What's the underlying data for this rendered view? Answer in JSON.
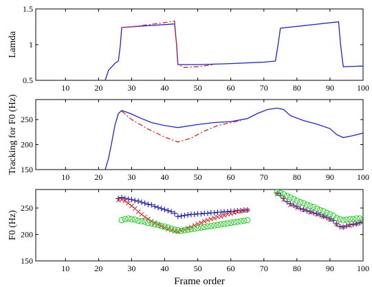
{
  "chart_data": [
    {
      "type": "line",
      "ylabel": "Lamda",
      "xlim": [
        1,
        100
      ],
      "ylim": [
        0.5,
        1.5
      ],
      "xticks": [
        10,
        20,
        30,
        40,
        50,
        60,
        70,
        80,
        90,
        100
      ],
      "yticks": [
        0.5,
        1,
        1.5
      ],
      "ytick_labels": [
        "0.5",
        "1",
        "1.5"
      ],
      "series": [
        {
          "color": "#1f1fd6",
          "style": "solid",
          "x": [
            22,
            23,
            25,
            26,
            26.6,
            27,
            43,
            43.6,
            44,
            50,
            60,
            70,
            73.5,
            74.3,
            75,
            92.6,
            93.2,
            94,
            100
          ],
          "y": [
            0.5,
            0.64,
            0.74,
            0.77,
            1.0,
            1.24,
            1.29,
            1.0,
            0.72,
            0.72,
            0.735,
            0.755,
            0.77,
            1.0,
            1.23,
            1.32,
            1.0,
            0.69,
            0.7
          ]
        },
        {
          "color": "#e02020",
          "style": "dashdot",
          "x": [
            27,
            30,
            35,
            40,
            43,
            43.6,
            44,
            46,
            50,
            55
          ],
          "y": [
            1.24,
            1.25,
            1.28,
            1.31,
            1.33,
            1.0,
            0.72,
            0.68,
            0.69,
            0.72
          ]
        }
      ]
    },
    {
      "type": "line",
      "ylabel": "Tracking for F0 (Hz)",
      "xlim": [
        1,
        100
      ],
      "ylim": [
        150,
        290
      ],
      "xticks": [
        10,
        20,
        30,
        40,
        50,
        60,
        70,
        80,
        90,
        100
      ],
      "yticks": [
        150,
        200,
        250
      ],
      "ytick_labels": [
        "150",
        "200",
        "250"
      ],
      "series": [
        {
          "color": "#1f1fd6",
          "style": "solid",
          "x": [
            22,
            23,
            24,
            25,
            26,
            27,
            28,
            30,
            33,
            36,
            40,
            44,
            50,
            55,
            60,
            65,
            68,
            71,
            74,
            76,
            78,
            82,
            86,
            90,
            92,
            94,
            97,
            100
          ],
          "y": [
            150,
            172,
            205,
            240,
            262,
            268,
            266,
            261,
            252,
            244,
            238,
            234,
            240,
            244,
            246,
            252,
            262,
            270,
            273,
            270,
            258,
            248,
            241,
            232,
            220,
            214,
            218,
            223
          ]
        },
        {
          "color": "#e02020",
          "style": "dashdot",
          "x": [
            27,
            30,
            35,
            40,
            44,
            48,
            52,
            56,
            60,
            63
          ],
          "y": [
            267,
            250,
            231,
            215,
            205,
            213,
            227,
            238,
            244,
            248
          ]
        }
      ]
    },
    {
      "type": "scatter",
      "xlabel": "Frame order",
      "ylabel": "F0 (Hz)",
      "xlim": [
        1,
        100
      ],
      "ylim": [
        150,
        285
      ],
      "xticks": [
        10,
        20,
        30,
        40,
        50,
        60,
        70,
        80,
        90,
        100
      ],
      "yticks": [
        150,
        200,
        250
      ],
      "ytick_labels": [
        "150",
        "200",
        "250"
      ],
      "series": [
        {
          "marker": "plus",
          "color": "#1a1aa8",
          "x": [
            26,
            27,
            28,
            29,
            30,
            31,
            32,
            33,
            34,
            35,
            36,
            37,
            38,
            39,
            40,
            41,
            42,
            43,
            44,
            45,
            46,
            47,
            48,
            49,
            50,
            51,
            52,
            53,
            54,
            55,
            56,
            57,
            58,
            59,
            60,
            61,
            62,
            63,
            64,
            65,
            74,
            75,
            76,
            77,
            78,
            79,
            80,
            81,
            82,
            83,
            84,
            85,
            86,
            87,
            88,
            89,
            90,
            91,
            92,
            93,
            94,
            95,
            96,
            97,
            98,
            99,
            100
          ],
          "y": [
            268,
            270,
            268,
            267,
            266,
            264,
            263,
            261,
            259,
            257,
            256,
            253,
            251,
            249,
            247,
            245,
            243,
            240,
            234,
            235,
            236,
            237,
            238,
            238,
            239,
            239,
            240,
            240,
            241,
            241,
            242,
            242,
            243,
            243,
            244,
            244,
            245,
            245,
            246,
            246,
            278,
            274,
            268,
            262,
            258,
            255,
            252,
            249,
            247,
            245,
            243,
            241,
            239,
            237,
            234,
            232,
            229,
            226,
            220,
            215,
            214,
            216,
            218,
            219,
            220,
            222,
            223
          ]
        },
        {
          "marker": "x",
          "color": "#e02020",
          "x": [
            26,
            27,
            28,
            29,
            30,
            31,
            32,
            33,
            34,
            35,
            36,
            37,
            38,
            39,
            40,
            41,
            42,
            43,
            44,
            45,
            46,
            47,
            48,
            49,
            50,
            51,
            52,
            53,
            54,
            55,
            56,
            57,
            58,
            59,
            60,
            61,
            62,
            63,
            64,
            65,
            74,
            76,
            78,
            80,
            82,
            84,
            86,
            88,
            90,
            92,
            94,
            96,
            98,
            100
          ],
          "y": [
            265,
            266,
            263,
            259,
            254,
            249,
            243,
            238,
            233,
            229,
            225,
            222,
            219,
            216,
            213,
            210,
            208,
            206,
            205,
            207,
            209,
            212,
            214,
            217,
            220,
            222,
            225,
            227,
            229,
            231,
            233,
            234,
            236,
            238,
            239,
            241,
            243,
            244,
            245,
            246,
            276,
            266,
            256,
            251,
            246,
            242,
            238,
            234,
            228,
            219,
            214,
            217,
            220,
            223
          ]
        },
        {
          "marker": "circle",
          "color": "#22cc22",
          "x": [
            27,
            28,
            29,
            30,
            31,
            32,
            33,
            34,
            35,
            36,
            37,
            38,
            39,
            40,
            41,
            42,
            43,
            44,
            45,
            46,
            47,
            48,
            49,
            50,
            51,
            52,
            53,
            54,
            55,
            56,
            57,
            58,
            59,
            60,
            61,
            62,
            63,
            64,
            65,
            74,
            75,
            76,
            77,
            78,
            79,
            80,
            81,
            82,
            83,
            84,
            85,
            86,
            87,
            88,
            89,
            90,
            91,
            92,
            93,
            94,
            95,
            96,
            97,
            98,
            99,
            100
          ],
          "y": [
            227,
            229,
            230,
            229,
            228,
            226,
            225,
            224,
            222,
            221,
            219,
            218,
            216,
            215,
            213,
            211,
            209,
            208,
            207,
            208,
            209,
            210,
            211,
            212,
            213,
            214,
            215,
            216,
            217,
            218,
            219,
            220,
            221,
            222,
            223,
            224,
            225,
            226,
            227,
            280,
            278,
            276,
            273,
            270,
            267,
            264,
            261,
            259,
            256,
            254,
            252,
            249,
            246,
            244,
            241,
            238,
            235,
            231,
            229,
            227,
            228,
            229,
            229,
            230,
            230,
            228
          ]
        }
      ]
    }
  ]
}
